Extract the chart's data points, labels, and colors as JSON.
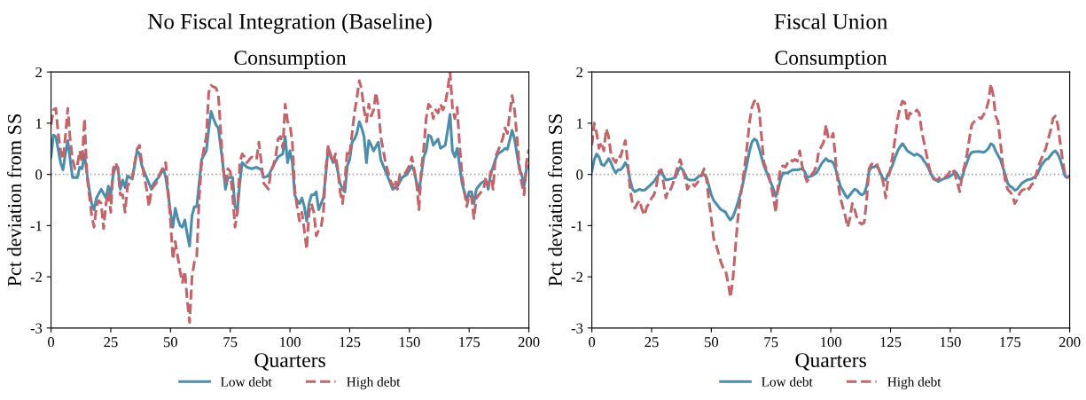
{
  "chart_data": [
    {
      "type": "line",
      "title": "No Fiscal Integration (Baseline)",
      "subtitle": "Consumption",
      "xlabel": "Quarters",
      "ylabel": "Pct deviation from SS",
      "xlim": [
        0,
        200
      ],
      "xticks": [
        0,
        25,
        50,
        75,
        100,
        125,
        150,
        175,
        200
      ],
      "ylim": [
        -3,
        2
      ],
      "yticks": [
        -3,
        -2,
        -1,
        0,
        1,
        2
      ],
      "grid": false,
      "legend": "bottom",
      "marker": "none",
      "ref_lines": [
        {
          "axis": "y",
          "value": 0,
          "color": "#aaaaaa",
          "line_style": "dotted"
        }
      ],
      "series": [
        {
          "name": "Low debt",
          "color": "#4c8dab",
          "line_style": "solid",
          "x": [
            0,
            1,
            2,
            4,
            5,
            6,
            7,
            8,
            9,
            11,
            12,
            13,
            14,
            15,
            16,
            17,
            18,
            19,
            21,
            23,
            24,
            25,
            26,
            27,
            28,
            29,
            30,
            31,
            32,
            34,
            36,
            37,
            38,
            40,
            42,
            43,
            45,
            47,
            48,
            49,
            50,
            51,
            52,
            53,
            54,
            55,
            56,
            57,
            58,
            59,
            60,
            61,
            62,
            63,
            65,
            66,
            67,
            68,
            69,
            70,
            72,
            73,
            74,
            76,
            77,
            78,
            79,
            80,
            82,
            84,
            86,
            88,
            89,
            91,
            93,
            95,
            97,
            98,
            99,
            100,
            101,
            102,
            103,
            104,
            105,
            106,
            107,
            108,
            109,
            110,
            111,
            112,
            113,
            114,
            115,
            116,
            117,
            118,
            119,
            120,
            121,
            122,
            123,
            124,
            125,
            126,
            127,
            128,
            129,
            130,
            131,
            132,
            133,
            134,
            135,
            137,
            138,
            140,
            142,
            143,
            145,
            147,
            149,
            151,
            152,
            153,
            154,
            155,
            156,
            157,
            158,
            159,
            160,
            162,
            163,
            165,
            166,
            167,
            168,
            169,
            170,
            171,
            172,
            173,
            174,
            175,
            176,
            177,
            178,
            180,
            182,
            183,
            184,
            186,
            187,
            189,
            190,
            191,
            193,
            194,
            195,
            196,
            197,
            198,
            199,
            200
          ],
          "values": [
            0.34,
            0.77,
            0.74,
            0.23,
            0.09,
            0.4,
            0.66,
            0.29,
            -0.06,
            -0.06,
            0.14,
            0.11,
            0.4,
            0.03,
            -0.29,
            -0.57,
            -0.69,
            -0.46,
            -0.29,
            -0.46,
            -0.23,
            -0.4,
            0,
            0.14,
            0.14,
            -0.29,
            -0.11,
            -0.26,
            -0.03,
            -0.09,
            0.46,
            0.4,
            0.17,
            -0.06,
            -0.29,
            -0.17,
            -0.06,
            0.11,
            -0.06,
            -0.37,
            -0.74,
            -1.03,
            -0.66,
            -0.86,
            -1.0,
            -1.03,
            -0.89,
            -1.17,
            -1.4,
            -0.8,
            -0.63,
            -0.63,
            -0.17,
            0.29,
            0.46,
            0.89,
            1.23,
            1.09,
            0.97,
            0.91,
            0.17,
            -0.29,
            -0.06,
            -0.06,
            -0.63,
            -0.71,
            -0.17,
            0.23,
            0.14,
            0.11,
            0.14,
            0.09,
            -0.06,
            -0.03,
            0.17,
            0.34,
            0.4,
            0.74,
            0.23,
            0.46,
            0.23,
            -0.4,
            -0.51,
            -0.57,
            -0.46,
            -0.63,
            -0.91,
            -0.57,
            -0.4,
            -0.4,
            -0.34,
            -0.69,
            -0.57,
            -0.46,
            0,
            0.51,
            0.4,
            0.23,
            0.29,
            0.06,
            -0.17,
            -0.29,
            -0.34,
            0.17,
            0.29,
            0.63,
            0.69,
            0.8,
            1.03,
            0.91,
            0.74,
            0.23,
            0.66,
            0.57,
            0.46,
            0.63,
            0.29,
            0.06,
            -0.17,
            -0.29,
            -0.23,
            -0.06,
            0,
            0.17,
            0.06,
            -0.17,
            -0.34,
            0,
            0.34,
            0.46,
            0.77,
            0.74,
            0.57,
            0.69,
            0.51,
            0.57,
            0.86,
            1.17,
            0.46,
            0.34,
            0.51,
            0.17,
            -0.17,
            -0.34,
            -0.51,
            -0.34,
            -0.34,
            -0.57,
            -0.29,
            -0.17,
            -0.11,
            -0.29,
            0,
            0.29,
            0.4,
            0.46,
            0.51,
            0.49,
            0.86,
            0.69,
            0.4,
            0.11,
            0,
            -0.23,
            0.11,
            0.17
          ]
        },
        {
          "name": "High debt",
          "color": "#c2646a",
          "line_style": "dashed",
          "x": [
            0,
            1,
            2,
            3,
            4,
            5,
            6,
            7,
            8,
            9,
            10,
            11,
            12,
            13,
            14,
            15,
            16,
            17,
            18,
            19,
            20,
            21,
            22,
            23,
            24,
            25,
            26,
            27,
            28,
            29,
            30,
            31,
            32,
            34,
            36,
            37,
            38,
            40,
            41,
            42,
            44,
            46,
            48,
            49,
            50,
            51,
            52,
            53,
            54,
            55,
            56,
            57,
            58,
            59,
            60,
            61,
            62,
            63,
            64,
            65,
            66,
            67,
            68,
            69,
            70,
            71,
            72,
            73,
            74,
            75,
            76,
            77,
            78,
            79,
            80,
            81,
            82,
            83,
            84,
            86,
            87,
            88,
            89,
            91,
            92,
            93,
            94,
            95,
            96,
            97,
            98,
            99,
            100,
            101,
            102,
            103,
            104,
            105,
            106,
            107,
            108,
            109,
            110,
            111,
            112,
            113,
            114,
            115,
            116,
            117,
            118,
            119,
            120,
            121,
            122,
            123,
            124,
            125,
            126,
            127,
            128,
            129,
            130,
            131,
            132,
            133,
            134,
            135,
            136,
            137,
            138,
            140,
            142,
            143,
            144,
            145,
            146,
            148,
            150,
            151,
            153,
            154,
            155,
            156,
            157,
            158,
            159,
            160,
            161,
            162,
            163,
            164,
            165,
            166,
            167,
            168,
            169,
            170,
            171,
            172,
            173,
            174,
            175,
            176,
            177,
            178,
            179,
            181,
            182,
            183,
            184,
            185,
            186,
            188,
            189,
            190,
            191,
            192,
            193,
            194,
            195,
            196,
            197,
            198,
            199,
            200
          ],
          "values": [
            0.97,
            1.26,
            1.29,
            0.8,
            0.46,
            0.29,
            0.74,
            1.29,
            0.69,
            0.29,
            0.11,
            0.17,
            0.46,
            0.23,
            1.09,
            0,
            -0.4,
            -0.8,
            -1.03,
            -0.63,
            -0.51,
            -0.57,
            -1.06,
            -0.57,
            -0.34,
            -0.74,
            0.11,
            0.23,
            0.11,
            -0.4,
            -0.4,
            -0.74,
            -0.23,
            -0.06,
            0.49,
            0.57,
            0.23,
            -0.29,
            -0.63,
            -0.29,
            -0.17,
            0.06,
            0.23,
            -0.34,
            -0.91,
            -1.66,
            -1.31,
            -1.6,
            -1.89,
            -2.11,
            -1.89,
            -2.46,
            -2.89,
            -2.0,
            -1.71,
            -1.6,
            -0.46,
            0.23,
            0.51,
            0.74,
            1.6,
            1.74,
            1.71,
            1.69,
            1.57,
            0.86,
            0.11,
            -0.17,
            0.11,
            0.06,
            -0.4,
            -1.03,
            -0.74,
            0.23,
            0.4,
            0.34,
            0.23,
            0.29,
            0.34,
            0.29,
            0.63,
            0.23,
            -0.17,
            -0.29,
            0.06,
            0.17,
            0.34,
            0.69,
            0.74,
            0.51,
            1.37,
            1.03,
            0.97,
            0.63,
            -0.29,
            -0.63,
            -0.91,
            -0.74,
            -1.09,
            -1.46,
            -0.74,
            -0.57,
            -0.74,
            -1.2,
            -1.09,
            -1.03,
            -0.74,
            0.11,
            0.57,
            0.34,
            0.23,
            0.4,
            0.11,
            -0.34,
            -0.57,
            -0.11,
            0.46,
            0.4,
            0.8,
            1.2,
            1.49,
            1.83,
            1.66,
            1.26,
            1.03,
            1.37,
            1.14,
            1.26,
            1.6,
            1.31,
            0.74,
            0.23,
            -0.11,
            -0.23,
            -0.11,
            -0.29,
            0,
            0,
            0.17,
            0.34,
            -0.17,
            -0.69,
            0.11,
            0.51,
            1.09,
            1.37,
            1.31,
            1.09,
            1.26,
            1.2,
            1.37,
            1.26,
            1.37,
            1.66,
            2.0,
            1.31,
            1.09,
            1.31,
            0.57,
            0,
            -0.34,
            -0.63,
            -0.4,
            -0.46,
            -0.86,
            -0.46,
            -0.4,
            -0.29,
            -0.06,
            -0.23,
            0.06,
            -0.29,
            0.34,
            0.57,
            0.69,
            0.91,
            0.8,
            1.2,
            1.54,
            1.26,
            0.74,
            0.17,
            -0.17,
            -0.4,
            0.23,
            0.49
          ]
        }
      ]
    },
    {
      "type": "line",
      "title": "Fiscal Union",
      "subtitle": "Consumption",
      "xlabel": "Quarters",
      "ylabel": "Pct deviation from SS",
      "xlim": [
        0,
        200
      ],
      "xticks": [
        0,
        25,
        50,
        75,
        100,
        125,
        150,
        175,
        200
      ],
      "ylim": [
        -3,
        2
      ],
      "yticks": [
        -3,
        -2,
        -1,
        0,
        1,
        2
      ],
      "grid": false,
      "legend": "bottom",
      "marker": "none",
      "ref_lines": [
        {
          "axis": "y",
          "value": 0,
          "color": "#aaaaaa",
          "line_style": "dotted"
        }
      ],
      "series": [
        {
          "name": "Low debt",
          "color": "#4c8dab",
          "line_style": "solid",
          "x": [
            0,
            1,
            2,
            3,
            4,
            5,
            6,
            7,
            8,
            9,
            10,
            11,
            12,
            13,
            14,
            15,
            16,
            17,
            18,
            19,
            20,
            21,
            22,
            24,
            26,
            28,
            29,
            30,
            31,
            33,
            35,
            36,
            37,
            38,
            39,
            40,
            41,
            43,
            45,
            47,
            48,
            49,
            50,
            51,
            52,
            53,
            54,
            55,
            56,
            57,
            58,
            59,
            60,
            61,
            62,
            63,
            64,
            65,
            66,
            67,
            68,
            69,
            70,
            71,
            72,
            73,
            74,
            75,
            76,
            77,
            78,
            79,
            80,
            82,
            84,
            86,
            88,
            89,
            90,
            92,
            94,
            95,
            96,
            97,
            98,
            99,
            100,
            101,
            102,
            103,
            104,
            105,
            106,
            107,
            108,
            109,
            110,
            111,
            112,
            113,
            114,
            115,
            116,
            117,
            118,
            119,
            120,
            121,
            122,
            123,
            124,
            125,
            126,
            127,
            128,
            129,
            130,
            131,
            132,
            133,
            134,
            135,
            136,
            137,
            138,
            139,
            140,
            141,
            142,
            143,
            144,
            145,
            146,
            147,
            149,
            151,
            152,
            153,
            154,
            155,
            156,
            157,
            158,
            159,
            160,
            162,
            163,
            164,
            165,
            166,
            167,
            168,
            169,
            170,
            171,
            172,
            173,
            174,
            175,
            176,
            177,
            178,
            179,
            180,
            181,
            182,
            184,
            185,
            186,
            187,
            188,
            189,
            190,
            191,
            192,
            193,
            194,
            195,
            196,
            197,
            198,
            199,
            200
          ],
          "values": [
            0.06,
            0.29,
            0.4,
            0.34,
            0.2,
            0.17,
            0.23,
            0.31,
            0.23,
            0.11,
            0.03,
            0.09,
            0.09,
            0.14,
            0.23,
            0.14,
            -0.11,
            -0.29,
            -0.34,
            -0.31,
            -0.29,
            -0.31,
            -0.31,
            -0.23,
            -0.14,
            0,
            0.09,
            -0.03,
            -0.11,
            -0.09,
            -0.06,
            0.06,
            0.14,
            0.09,
            0,
            -0.09,
            -0.11,
            -0.11,
            -0.03,
            0,
            -0.06,
            -0.23,
            -0.4,
            -0.51,
            -0.57,
            -0.63,
            -0.69,
            -0.71,
            -0.74,
            -0.83,
            -0.89,
            -0.83,
            -0.71,
            -0.57,
            -0.4,
            -0.23,
            0,
            0.23,
            0.46,
            0.63,
            0.69,
            0.66,
            0.51,
            0.34,
            0.17,
            0.06,
            -0.06,
            -0.17,
            -0.29,
            -0.43,
            -0.29,
            -0.09,
            0.03,
            0.03,
            0.09,
            0.09,
            0.11,
            0.06,
            -0.06,
            -0.03,
            0.03,
            0.11,
            0.2,
            0.26,
            0.31,
            0.26,
            0.26,
            0.23,
            0.11,
            -0.06,
            -0.23,
            -0.31,
            -0.4,
            -0.46,
            -0.4,
            -0.34,
            -0.29,
            -0.31,
            -0.37,
            -0.4,
            -0.37,
            -0.23,
            0.06,
            0.14,
            0.14,
            0.17,
            0.11,
            0,
            -0.09,
            -0.11,
            0,
            0.09,
            0.2,
            0.34,
            0.46,
            0.54,
            0.6,
            0.54,
            0.46,
            0.43,
            0.4,
            0.37,
            0.4,
            0.37,
            0.34,
            0.26,
            0.2,
            0.11,
            0,
            -0.09,
            -0.11,
            -0.14,
            -0.11,
            -0.09,
            -0.06,
            0,
            0.06,
            0,
            -0.09,
            -0.06,
            0.11,
            0.23,
            0.37,
            0.43,
            0.44,
            0.45,
            0.44,
            0.43,
            0.46,
            0.51,
            0.6,
            0.57,
            0.46,
            0.37,
            0.29,
            0.14,
            0,
            -0.17,
            -0.23,
            -0.26,
            -0.31,
            -0.29,
            -0.23,
            -0.17,
            -0.14,
            -0.11,
            -0.09,
            -0.06,
            -0.03,
            0.06,
            0.17,
            0.23,
            0.29,
            0.31,
            0.37,
            0.43,
            0.46,
            0.4,
            0.29,
            0.14,
            -0.03,
            -0.06,
            -0.03
          ]
        },
        {
          "name": "High debt",
          "color": "#c2646a",
          "line_style": "dashed",
          "x": [
            0,
            1,
            2,
            3,
            4,
            5,
            6,
            7,
            8,
            9,
            10,
            11,
            12,
            13,
            14,
            15,
            16,
            17,
            18,
            19,
            20,
            21,
            22,
            23,
            24,
            25,
            26,
            27,
            28,
            29,
            30,
            31,
            32,
            33,
            34,
            36,
            37,
            38,
            39,
            40,
            41,
            42,
            43,
            45,
            47,
            48,
            49,
            50,
            51,
            52,
            53,
            54,
            55,
            56,
            57,
            58,
            59,
            60,
            61,
            62,
            63,
            64,
            65,
            66,
            67,
            68,
            69,
            70,
            71,
            72,
            73,
            74,
            75,
            76,
            77,
            78,
            79,
            80,
            81,
            82,
            83,
            84,
            85,
            86,
            87,
            88,
            89,
            90,
            91,
            92,
            93,
            94,
            95,
            96,
            97,
            98,
            99,
            100,
            101,
            102,
            103,
            104,
            105,
            106,
            107,
            108,
            109,
            110,
            111,
            112,
            113,
            114,
            115,
            116,
            117,
            118,
            119,
            120,
            121,
            122,
            123,
            124,
            125,
            126,
            127,
            128,
            129,
            130,
            131,
            132,
            133,
            134,
            135,
            136,
            137,
            138,
            139,
            140,
            141,
            142,
            143,
            144,
            145,
            146,
            148,
            150,
            151,
            152,
            153,
            154,
            155,
            156,
            157,
            158,
            159,
            160,
            161,
            162,
            163,
            164,
            165,
            166,
            167,
            168,
            169,
            170,
            171,
            172,
            173,
            174,
            175,
            176,
            177,
            178,
            179,
            180,
            181,
            182,
            183,
            184,
            185,
            186,
            187,
            188,
            189,
            190,
            191,
            192,
            193,
            194,
            195,
            196,
            197,
            198,
            199,
            200
          ],
          "values": [
            0.57,
            1.0,
            0.8,
            0.51,
            0.63,
            0.46,
            0.89,
            0.74,
            0.4,
            0.29,
            0.23,
            0.37,
            0.34,
            0.51,
            0.66,
            0.23,
            -0.29,
            -0.57,
            -0.66,
            -0.57,
            -0.51,
            -0.69,
            -0.8,
            -0.63,
            -0.57,
            -0.46,
            -0.4,
            -0.23,
            0.06,
            0.09,
            -0.17,
            -0.46,
            -0.29,
            -0.29,
            -0.17,
            0.17,
            0.29,
            0.11,
            -0.06,
            -0.29,
            -0.2,
            -0.17,
            -0.23,
            -0.11,
            0.11,
            -0.11,
            -0.51,
            -0.86,
            -1.26,
            -1.37,
            -1.54,
            -1.71,
            -1.83,
            -1.89,
            -2.11,
            -2.4,
            -2.06,
            -1.49,
            -0.91,
            -0.51,
            -0.17,
            0.17,
            0.57,
            1.03,
            1.31,
            1.43,
            1.46,
            1.26,
            0.74,
            0.23,
            0.11,
            0,
            -0.23,
            -0.46,
            -0.74,
            -0.17,
            0.14,
            0.17,
            0.14,
            0.23,
            0.29,
            0.26,
            0.29,
            0.26,
            0.46,
            0.17,
            0,
            -0.14,
            -0.06,
            0,
            0.06,
            0.17,
            0.46,
            0.54,
            0.63,
            0.97,
            0.69,
            0.69,
            0.8,
            0.29,
            -0.17,
            -0.46,
            -0.63,
            -0.8,
            -1.03,
            -0.86,
            -0.57,
            -0.69,
            -0.86,
            -0.94,
            -0.97,
            -0.94,
            -0.51,
            0.11,
            0.2,
            0.2,
            0.23,
            0.11,
            0,
            -0.17,
            -0.46,
            -0.06,
            0.11,
            0.4,
            0.74,
            1.09,
            1.31,
            1.43,
            1.4,
            1.03,
            1.2,
            1.17,
            1.2,
            1.26,
            1.2,
            0.86,
            0.63,
            0.4,
            0.17,
            0,
            -0.06,
            -0.11,
            -0.09,
            -0.03,
            -0.06,
            0.06,
            0.11,
            0,
            -0.17,
            -0.34,
            0,
            0.17,
            0.4,
            0.69,
            0.97,
            1.03,
            1.06,
            1.11,
            1.09,
            1.17,
            1.26,
            1.43,
            1.77,
            1.54,
            1.14,
            1.03,
            0.63,
            0.17,
            -0.11,
            -0.29,
            -0.34,
            -0.4,
            -0.57,
            -0.49,
            -0.37,
            -0.31,
            -0.29,
            -0.23,
            -0.29,
            -0.2,
            -0.17,
            0,
            0.17,
            0.29,
            0.4,
            0.51,
            0.69,
            0.86,
            1.09,
            1.14,
            0.97,
            0.63,
            0.29,
            0,
            -0.06,
            -0.03
          ]
        }
      ]
    }
  ]
}
